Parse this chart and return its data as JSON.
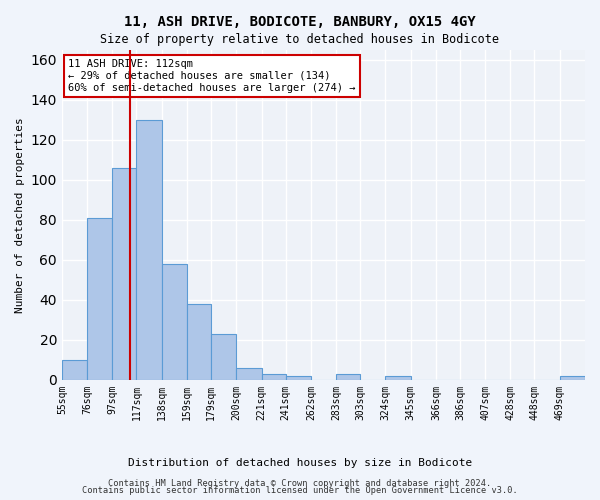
{
  "title1": "11, ASH DRIVE, BODICOTE, BANBURY, OX15 4GY",
  "title2": "Size of property relative to detached houses in Bodicote",
  "xlabel": "Distribution of detached houses by size in Bodicote",
  "ylabel": "Number of detached properties",
  "bin_labels": [
    "55sqm",
    "76sqm",
    "97sqm",
    "117sqm",
    "138sqm",
    "159sqm",
    "179sqm",
    "200sqm",
    "221sqm",
    "241sqm",
    "262sqm",
    "283sqm",
    "303sqm",
    "324sqm",
    "345sqm",
    "366sqm",
    "386sqm",
    "407sqm",
    "428sqm",
    "448sqm",
    "469sqm"
  ],
  "bin_edges": [
    55,
    76,
    97,
    117,
    138,
    159,
    179,
    200,
    221,
    241,
    262,
    283,
    303,
    324,
    345,
    366,
    386,
    407,
    428,
    448,
    469,
    490
  ],
  "bar_heights": [
    10,
    81,
    106,
    130,
    58,
    38,
    23,
    6,
    3,
    2,
    0,
    3,
    0,
    2,
    0,
    0,
    0,
    0,
    0,
    0,
    2
  ],
  "bar_color": "#aec6e8",
  "bar_edge_color": "#5b9bd5",
  "property_size": 112,
  "red_line_color": "#cc0000",
  "annotation_text": "11 ASH DRIVE: 112sqm\n← 29% of detached houses are smaller (134)\n60% of semi-detached houses are larger (274) →",
  "annotation_box_color": "#ffffff",
  "annotation_box_edge_color": "#cc0000",
  "ylim": [
    0,
    165
  ],
  "yticks": [
    0,
    20,
    40,
    60,
    80,
    100,
    120,
    140,
    160
  ],
  "background_color": "#eef2f8",
  "grid_color": "#ffffff",
  "footer1": "Contains HM Land Registry data © Crown copyright and database right 2024.",
  "footer2": "Contains public sector information licensed under the Open Government Licence v3.0."
}
